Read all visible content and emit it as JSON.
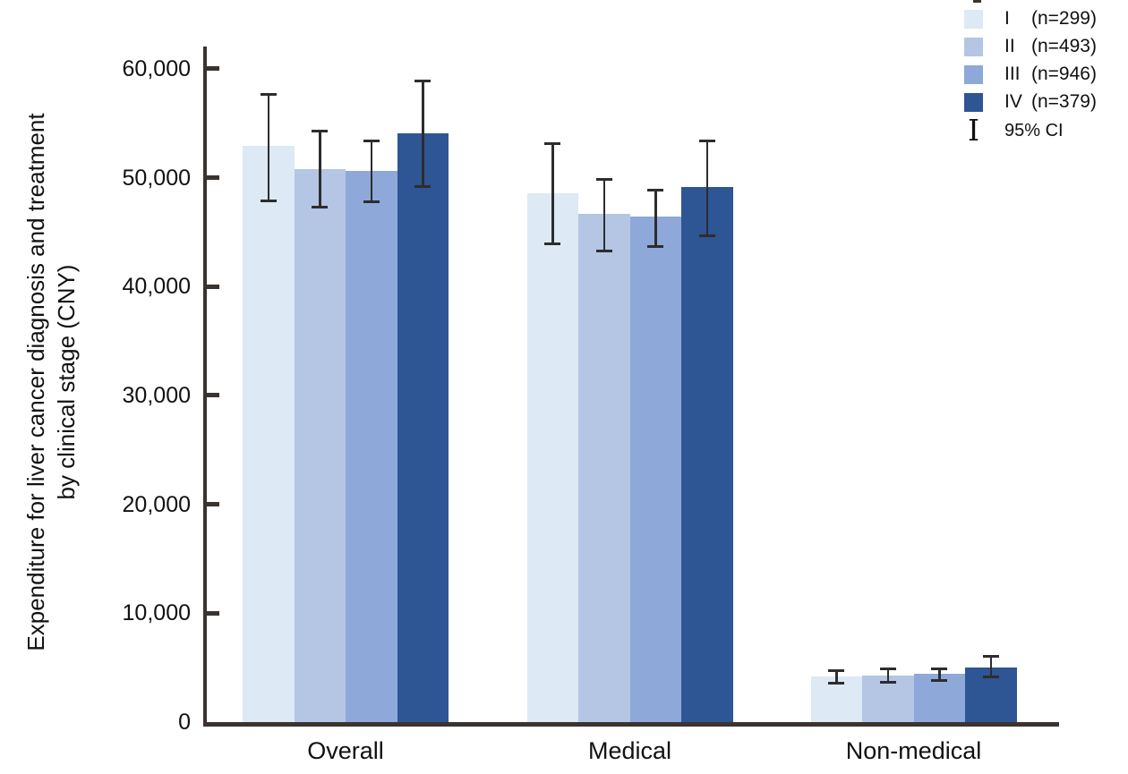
{
  "chart_data": {
    "type": "bar",
    "title": "",
    "xlabel": "",
    "ylabel_lines": [
      "Expenditure for liver cancer diagnosis and treatment",
      "by clinical stage (CNY)"
    ],
    "categories": [
      "Overall",
      "Medical",
      "Non-medical"
    ],
    "ylim": [
      0,
      60000
    ],
    "grid": false,
    "legend_position": "top-right",
    "yticks": {
      "values": [
        0,
        10000,
        20000,
        30000,
        40000,
        50000,
        60000
      ],
      "labels": [
        "0",
        "10,000",
        "20,000",
        "30,000",
        "40,000",
        "50,000",
        "60,000"
      ]
    },
    "series": [
      {
        "roman": "I",
        "count": "(n=299)",
        "color": "#dde9f4",
        "values": [
          52900,
          48600,
          4200
        ],
        "ci_low": [
          47900,
          44000,
          3650
        ],
        "ci_high": [
          57700,
          53200,
          4800
        ]
      },
      {
        "roman": "II",
        "count": "(n=493)",
        "color": "#b4c6e4",
        "values": [
          50800,
          46700,
          4300
        ],
        "ci_low": [
          47300,
          43300,
          3700
        ],
        "ci_high": [
          54300,
          49900,
          4900
        ]
      },
      {
        "roman": "III",
        "count": "(n=946)",
        "color": "#8ea8d9",
        "values": [
          50600,
          46400,
          4400
        ],
        "ci_low": [
          47800,
          43700,
          3900
        ],
        "ci_high": [
          53400,
          48900,
          4950
        ]
      },
      {
        "roman": "IV",
        "count": "(n=379)",
        "color": "#2e5594",
        "values": [
          54100,
          49100,
          5000
        ],
        "ci_low": [
          49200,
          44700,
          4150
        ],
        "ci_high": [
          58900,
          53400,
          6050
        ]
      }
    ],
    "ci_legend": {
      "glyph": "I",
      "label": "95% CI"
    }
  },
  "colors": {
    "axis": "#3b3330",
    "error_bar": "#2d2d2d",
    "text": "#111111"
  }
}
